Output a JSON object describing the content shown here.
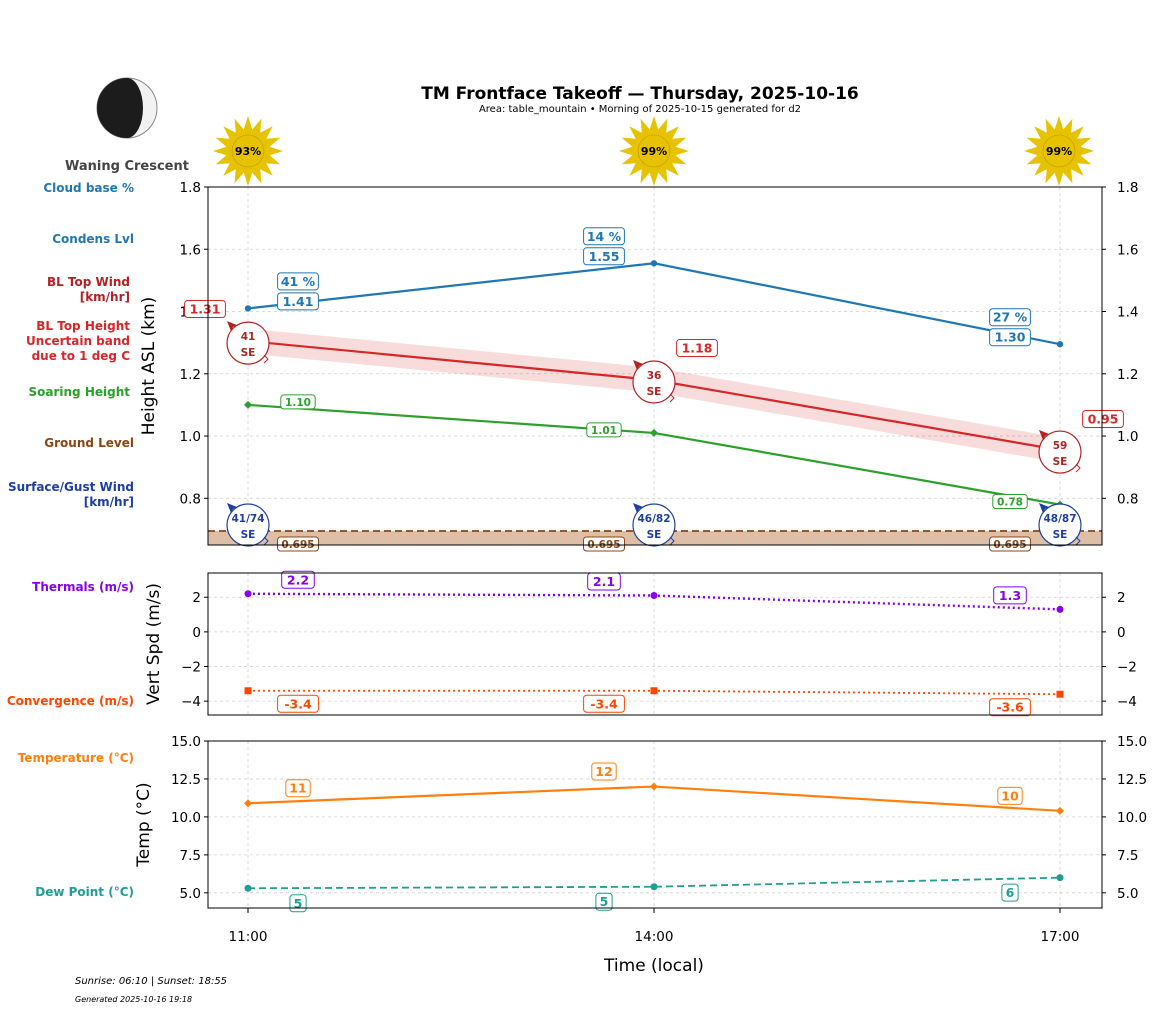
{
  "header": {
    "title": "TM Frontface Takeoff — Thursday, 2025-10-16",
    "subtitle": "Area: table_mountain • Morning of 2025-10-15 generated for d2",
    "moon_phase": "Waning Crescent"
  },
  "sun_icons": [
    "93%",
    "99%",
    "99%"
  ],
  "row_labels": {
    "cloud_base": "Cloud base %",
    "condens": "Condens Lvl",
    "bl_wind": [
      "BL Top Wind",
      "[km/hr]"
    ],
    "bl_height": [
      "BL Top Height",
      "Uncertain band",
      "due to 1 deg C"
    ],
    "soaring": "Soaring Height",
    "ground": "Ground Level",
    "surface_wind": [
      "Surface/Gust Wind",
      "[km/hr]"
    ],
    "thermals": "Thermals (m/s)",
    "convergence": "Convergence (m/s)",
    "temperature": "Temperature (°C)",
    "dewpoint": "Dew Point (°C)"
  },
  "footer": {
    "sun_times": "Sunrise: 06:10 | Sunset: 18:55",
    "generated": "Generated 2025-10-16 19:18"
  },
  "colors": {
    "condens": "#1f77b4",
    "bl_top": "#d62728",
    "soaring": "#2ca02c",
    "ground": "#8b4513",
    "surface_wind": "#1f3fa0",
    "thermals": "#8800ee",
    "convergence": "#ff4500",
    "temperature": "#ff7f0e",
    "dewpoint": "#1f9e93"
  },
  "chart_data": [
    {
      "type": "line",
      "name": "height",
      "categories": [
        "11:00",
        "14:00",
        "17:00"
      ],
      "ylabel": "Height ASL (km)",
      "ylim": [
        0.65,
        1.8
      ],
      "yticks": [
        "0.8",
        "1.0",
        "1.2",
        "1.4",
        "1.6",
        "1.8"
      ],
      "series": [
        {
          "name": "Condens Lvl",
          "values": [
            1.41,
            1.555,
            1.295
          ],
          "labels": [
            "1.41",
            "1.55",
            "1.30"
          ]
        },
        {
          "name": "Cloud base %",
          "labels": [
            "41 %",
            "14 %",
            "27 %"
          ]
        },
        {
          "name": "BL Top Height",
          "values": [
            1.305,
            1.18,
            0.955
          ],
          "labels": [
            "1.31",
            "1.18",
            "0.95"
          ],
          "band": 0.04
        },
        {
          "name": "Soaring Height",
          "values": [
            1.1,
            1.01,
            0.78
          ],
          "labels": [
            "1.10",
            "1.01",
            "0.78"
          ]
        },
        {
          "name": "Ground Level",
          "values": [
            0.695,
            0.695,
            0.695
          ],
          "labels": [
            "0.695",
            "0.695",
            "0.695"
          ]
        }
      ],
      "bl_wind": [
        {
          "speed": "41",
          "dir": "SE"
        },
        {
          "speed": "36",
          "dir": "SE"
        },
        {
          "speed": "59",
          "dir": "SE"
        }
      ],
      "surface_wind": [
        {
          "speed": "41/74",
          "dir": "SE"
        },
        {
          "speed": "46/82",
          "dir": "SE"
        },
        {
          "speed": "48/87",
          "dir": "SE"
        }
      ]
    },
    {
      "type": "line",
      "name": "vertical",
      "categories": [
        "11:00",
        "14:00",
        "17:00"
      ],
      "ylabel": "Vert Spd (m/s)",
      "ylim": [
        -4.8,
        3.4
      ],
      "yticks": [
        "−4",
        "−2",
        "0",
        "2"
      ],
      "series": [
        {
          "name": "Thermals (m/s)",
          "values": [
            2.2,
            2.1,
            1.3
          ],
          "labels": [
            "2.2",
            "2.1",
            "1.3"
          ]
        },
        {
          "name": "Convergence (m/s)",
          "values": [
            -3.4,
            -3.4,
            -3.6
          ],
          "labels": [
            "-3.4",
            "-3.4",
            "-3.6"
          ]
        }
      ]
    },
    {
      "type": "line",
      "name": "temperature",
      "categories": [
        "11:00",
        "14:00",
        "17:00"
      ],
      "xlabel": "Time (local)",
      "ylabel": "Temp (°C)",
      "ylim": [
        4.0,
        15.0
      ],
      "yticks": [
        "5.0",
        "7.5",
        "10.0",
        "12.5",
        "15.0"
      ],
      "series": [
        {
          "name": "Temperature (°C)",
          "values": [
            10.9,
            12.0,
            10.4
          ],
          "labels": [
            "11",
            "12",
            "10"
          ]
        },
        {
          "name": "Dew Point (°C)",
          "values": [
            5.3,
            5.4,
            6.0
          ],
          "labels": [
            "5",
            "5",
            "6"
          ]
        }
      ]
    }
  ]
}
